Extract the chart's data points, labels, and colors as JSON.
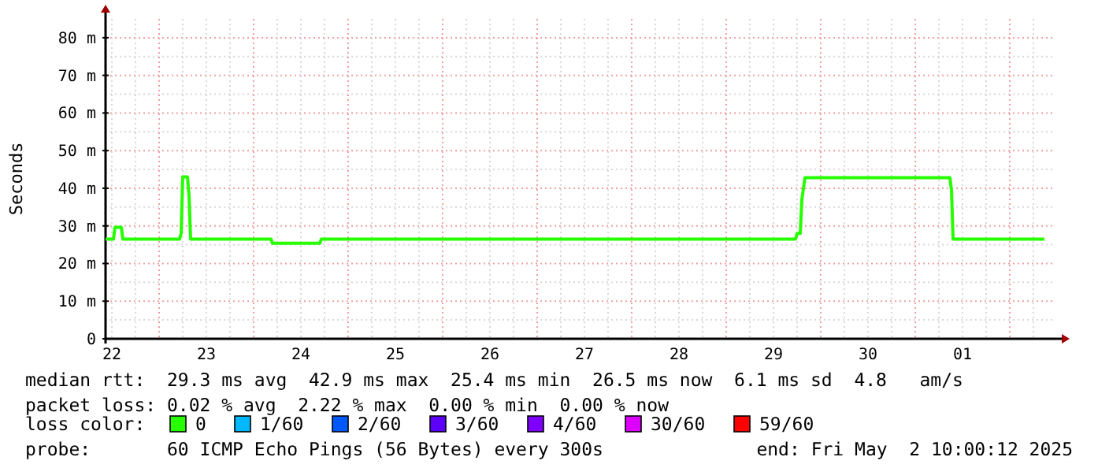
{
  "chart_data": {
    "type": "line",
    "ylabel": "Seconds",
    "x": [
      "2025-04-22T10:24",
      "2025-04-22T12:24",
      "2025-04-22T12:48",
      "2025-04-22T14:24",
      "2025-04-22T14:48",
      "2025-04-23T05:12",
      "2025-04-23T05:36",
      "2025-04-23T06:00",
      "2025-04-23T07:12",
      "2025-04-23T07:36",
      "2025-04-23T08:00",
      "2025-04-24T04:24",
      "2025-04-24T04:48",
      "2025-04-24T16:48",
      "2025-04-24T17:12",
      "2025-04-29T17:36",
      "2025-04-29T18:00",
      "2025-04-29T18:48",
      "2025-04-29T19:12",
      "2025-04-29T20:00",
      "2025-05-01T08:48",
      "2025-05-01T09:12",
      "2025-05-01T09:36",
      "2025-05-02T08:48"
    ],
    "series": [
      {
        "name": "0",
        "color": "#26ff00",
        "values": [
          26.5,
          26.5,
          29.6,
          29.6,
          26.5,
          26.5,
          28,
          43,
          43,
          38,
          26.5,
          26.5,
          25.4,
          25.4,
          26.5,
          26.5,
          28,
          28,
          37,
          42.8,
          42.8,
          39.5,
          26.5,
          26.5
        ]
      },
      {
        "name": "1/60",
        "color": "#00b8ff",
        "values": [
          null,
          null,
          null,
          null,
          null,
          null,
          null,
          null,
          null,
          null,
          null,
          null,
          null,
          null,
          null,
          null,
          null,
          null,
          null,
          null,
          null,
          null,
          null,
          null
        ]
      },
      {
        "name": "2/60",
        "color": "#0059ff",
        "values": [
          null,
          null,
          null,
          null,
          null,
          null,
          null,
          null,
          null,
          null,
          null,
          null,
          null,
          null,
          null,
          null,
          null,
          null,
          null,
          null,
          null,
          null,
          null,
          null
        ]
      },
      {
        "name": "3/60",
        "color": "#5e00ff",
        "values": [
          null,
          null,
          null,
          null,
          null,
          null,
          null,
          null,
          null,
          null,
          null,
          null,
          null,
          null,
          null,
          null,
          null,
          null,
          null,
          null,
          null,
          null,
          null,
          null
        ]
      },
      {
        "name": "4/60",
        "color": "#7e00ff",
        "values": [
          null,
          null,
          null,
          null,
          null,
          null,
          null,
          null,
          null,
          null,
          null,
          null,
          null,
          null,
          null,
          null,
          null,
          null,
          null,
          null,
          null,
          null,
          null,
          null
        ]
      },
      {
        "name": "30/60",
        "color": "#dd00ff",
        "values": [
          null,
          null,
          null,
          null,
          null,
          null,
          null,
          null,
          null,
          null,
          null,
          null,
          null,
          null,
          null,
          null,
          null,
          null,
          null,
          null,
          null,
          null,
          null,
          null
        ]
      },
      {
        "name": "59/60",
        "color": "#ff0000",
        "values": [
          null,
          null,
          null,
          null,
          null,
          null,
          null,
          null,
          null,
          null,
          null,
          null,
          null,
          null,
          null,
          null,
          null,
          null,
          null,
          null,
          null,
          null,
          null,
          null
        ]
      }
    ],
    "legend_title": "loss color:",
    "legend": "bottom",
    "xlim": [
      "2025-04-22T10:24",
      "2025-05-02T11:36"
    ],
    "xticks": [
      {
        "value": "2025-04-22T12:00",
        "label": "22"
      },
      {
        "value": "2025-04-23T12:00",
        "label": "23"
      },
      {
        "value": "2025-04-24T12:00",
        "label": "24"
      },
      {
        "value": "2025-04-25T12:00",
        "label": "25"
      },
      {
        "value": "2025-04-26T12:00",
        "label": "26"
      },
      {
        "value": "2025-04-27T12:00",
        "label": "27"
      },
      {
        "value": "2025-04-28T12:00",
        "label": "28"
      },
      {
        "value": "2025-04-29T12:00",
        "label": "29"
      },
      {
        "value": "2025-04-30T12:00",
        "label": "30"
      },
      {
        "value": "2025-05-01T12:00",
        "label": "01"
      }
    ],
    "ylim": [
      0,
      85
    ],
    "yticks": [
      {
        "value": 0,
        "label": "0"
      },
      {
        "value": 10,
        "label": "10 m"
      },
      {
        "value": 20,
        "label": "20 m"
      },
      {
        "value": 30,
        "label": "30 m"
      },
      {
        "value": 40,
        "label": "40 m"
      },
      {
        "value": 50,
        "label": "50 m"
      },
      {
        "value": 60,
        "label": "60 m"
      },
      {
        "value": 70,
        "label": "70 m"
      },
      {
        "value": 80,
        "label": "80 m"
      }
    ],
    "grid": true,
    "annotations": [
      "median rtt:  29.3 ms avg  42.9 ms max  25.4 ms min  26.5 ms now  6.1 ms sd  4.8   am/s",
      "packet loss: 0.02 % avg  2.22 % max  0.00 % min  0.00 % now",
      "probe:       60 ICMP Echo Pings (56 Bytes) every 300s",
      "end: Fri May  2 10:00:12 2025"
    ]
  }
}
